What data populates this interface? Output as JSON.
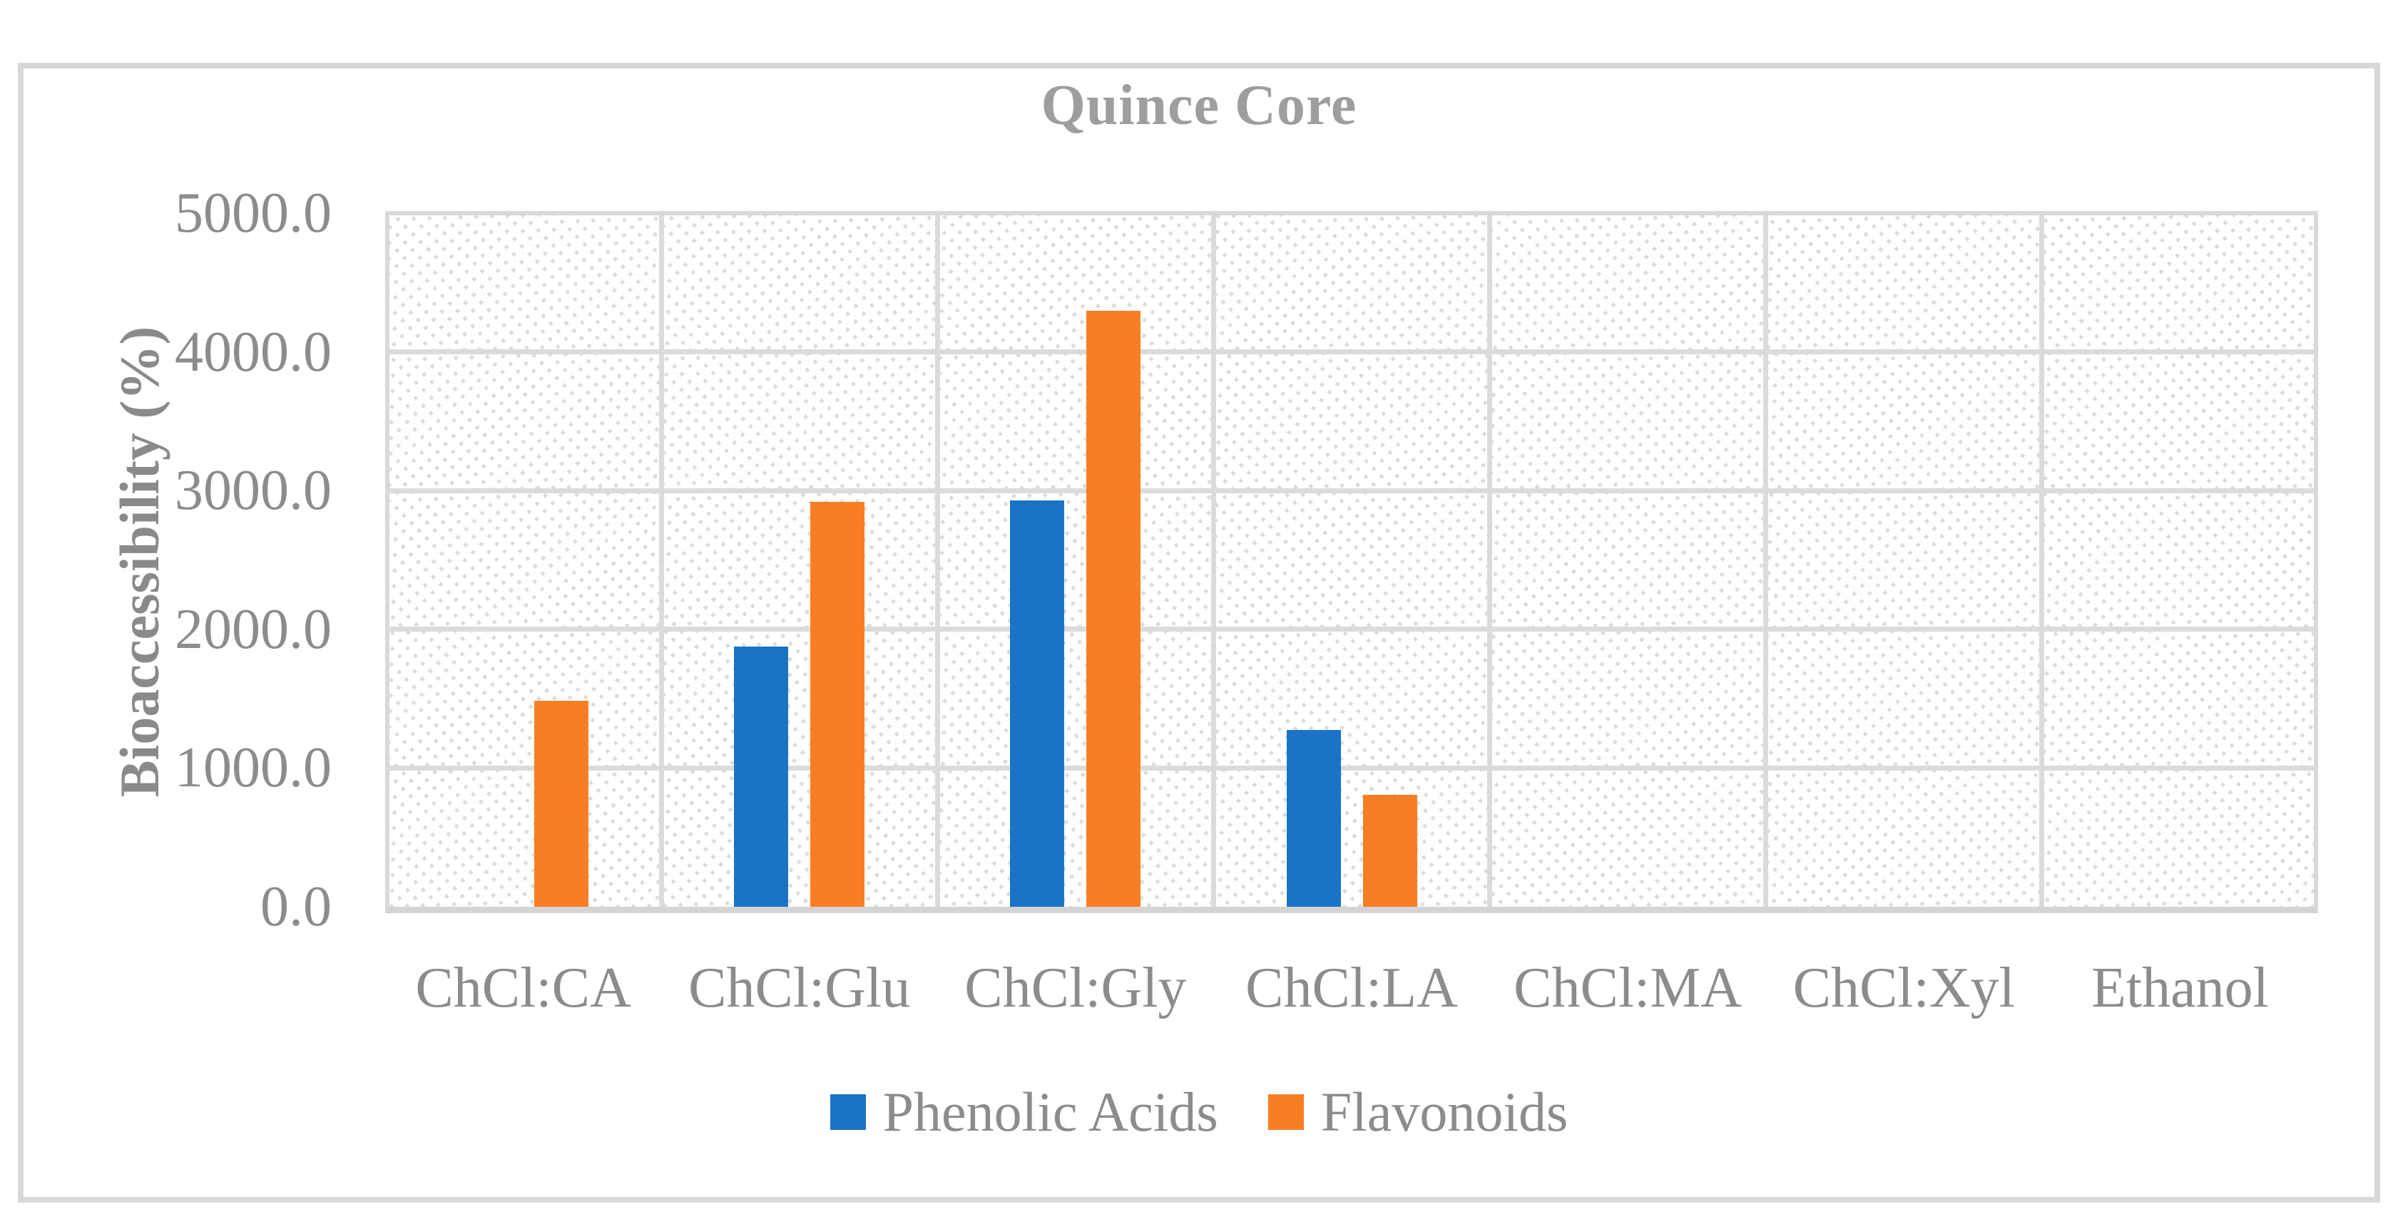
{
  "figure": {
    "title": "Quince Core"
  },
  "chart_data": {
    "type": "bar",
    "title": "Quince Core",
    "ylabel": "Bioaccessibility (%)",
    "xlabel": "",
    "categories": [
      "ChCl:CA",
      "ChCl:Glu",
      "ChCl:Gly",
      "ChCl:LA",
      "ChCl:MA",
      "ChCl:Xyl",
      "Ethanol"
    ],
    "series": [
      {
        "name": "Phenolic Acids",
        "color": "#1B73C7",
        "values": [
          0,
          1880,
          2940,
          1280,
          0,
          0,
          0
        ]
      },
      {
        "name": "Flavonoids",
        "color": "#F87E24",
        "values": [
          1490,
          2930,
          4310,
          810,
          0,
          0,
          0
        ]
      }
    ],
    "ylim": [
      0,
      5000
    ],
    "ytick_labels": [
      "0.0",
      "1000.0",
      "2000.0",
      "3000.0",
      "4000.0",
      "5000.0"
    ],
    "grid": true,
    "legend_position": "bottom",
    "plot_area_fill": "light-diagonal-hatch"
  },
  "colors": {
    "series_blue": "#1B73C7",
    "series_orange": "#F87E24",
    "text_gray": "#8C8C8C",
    "title_gray": "#9E9E9E",
    "gridline": "#DBDBDB",
    "axis_line": "#D4D4D4",
    "outer_border": "#D8D8D8",
    "hatch_dot": "#DCDCDC",
    "background": "#FFFFFF"
  }
}
